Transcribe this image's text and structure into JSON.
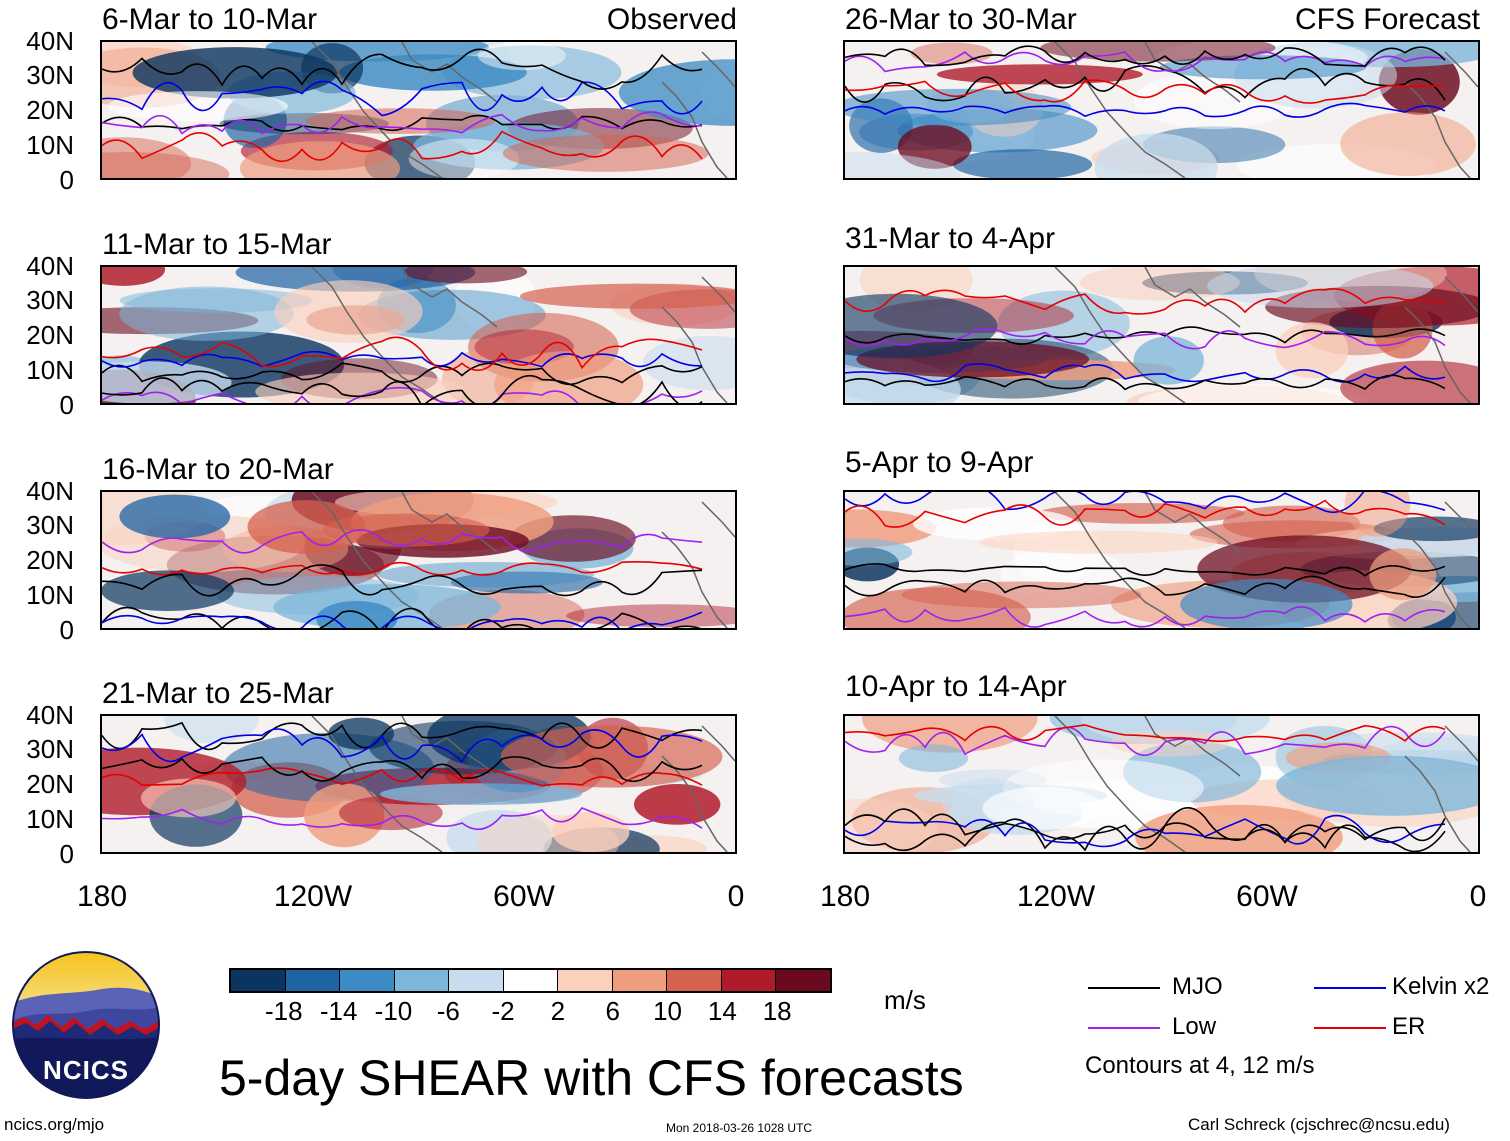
{
  "panels": {
    "obs": [
      {
        "title": "6-Mar to 10-Mar",
        "tag": "Observed"
      },
      {
        "title": "11-Mar to 15-Mar",
        "tag": ""
      },
      {
        "title": "16-Mar to 20-Mar",
        "tag": ""
      },
      {
        "title": "21-Mar to 25-Mar",
        "tag": ""
      }
    ],
    "fcst": [
      {
        "title": "26-Mar to 30-Mar",
        "tag": "CFS Forecast"
      },
      {
        "title": "31-Mar to 4-Apr",
        "tag": ""
      },
      {
        "title": "5-Apr to 9-Apr",
        "tag": ""
      },
      {
        "title": "10-Apr to 14-Apr",
        "tag": ""
      }
    ]
  },
  "lat_labels": [
    "40N",
    "30N",
    "20N",
    "10N",
    "0"
  ],
  "lon_labels": [
    "180",
    "120W",
    "60W",
    "0"
  ],
  "colorbar": {
    "labels": [
      "-18",
      "-14",
      "-10",
      "-6",
      "-2",
      "2",
      "6",
      "10",
      "14",
      "18"
    ],
    "colors": [
      "#0b3560",
      "#1e63a4",
      "#3d8bc4",
      "#7cb6da",
      "#c7dcee",
      "#ffffff",
      "#fbd0bd",
      "#ef9d7f",
      "#d5614f",
      "#b01b2b",
      "#6b0a1e"
    ],
    "units": "m/s"
  },
  "legend": {
    "items": [
      {
        "label": "MJO",
        "color": "#000000"
      },
      {
        "label": "Kelvin x2",
        "color": "#0000e6"
      },
      {
        "label": "Low",
        "color": "#a020f0"
      },
      {
        "label": "ER",
        "color": "#e60000"
      }
    ],
    "note": "Contours at 4, 12 m/s"
  },
  "title": "5-day SHEAR with CFS forecasts",
  "logo_text": "NCICS",
  "footer": {
    "url": "ncics.org/mjo",
    "timestamp": "Mon 2018-03-26 1028 UTC",
    "credit": "Carl Schreck (cjschrec@ncsu.edu)"
  }
}
